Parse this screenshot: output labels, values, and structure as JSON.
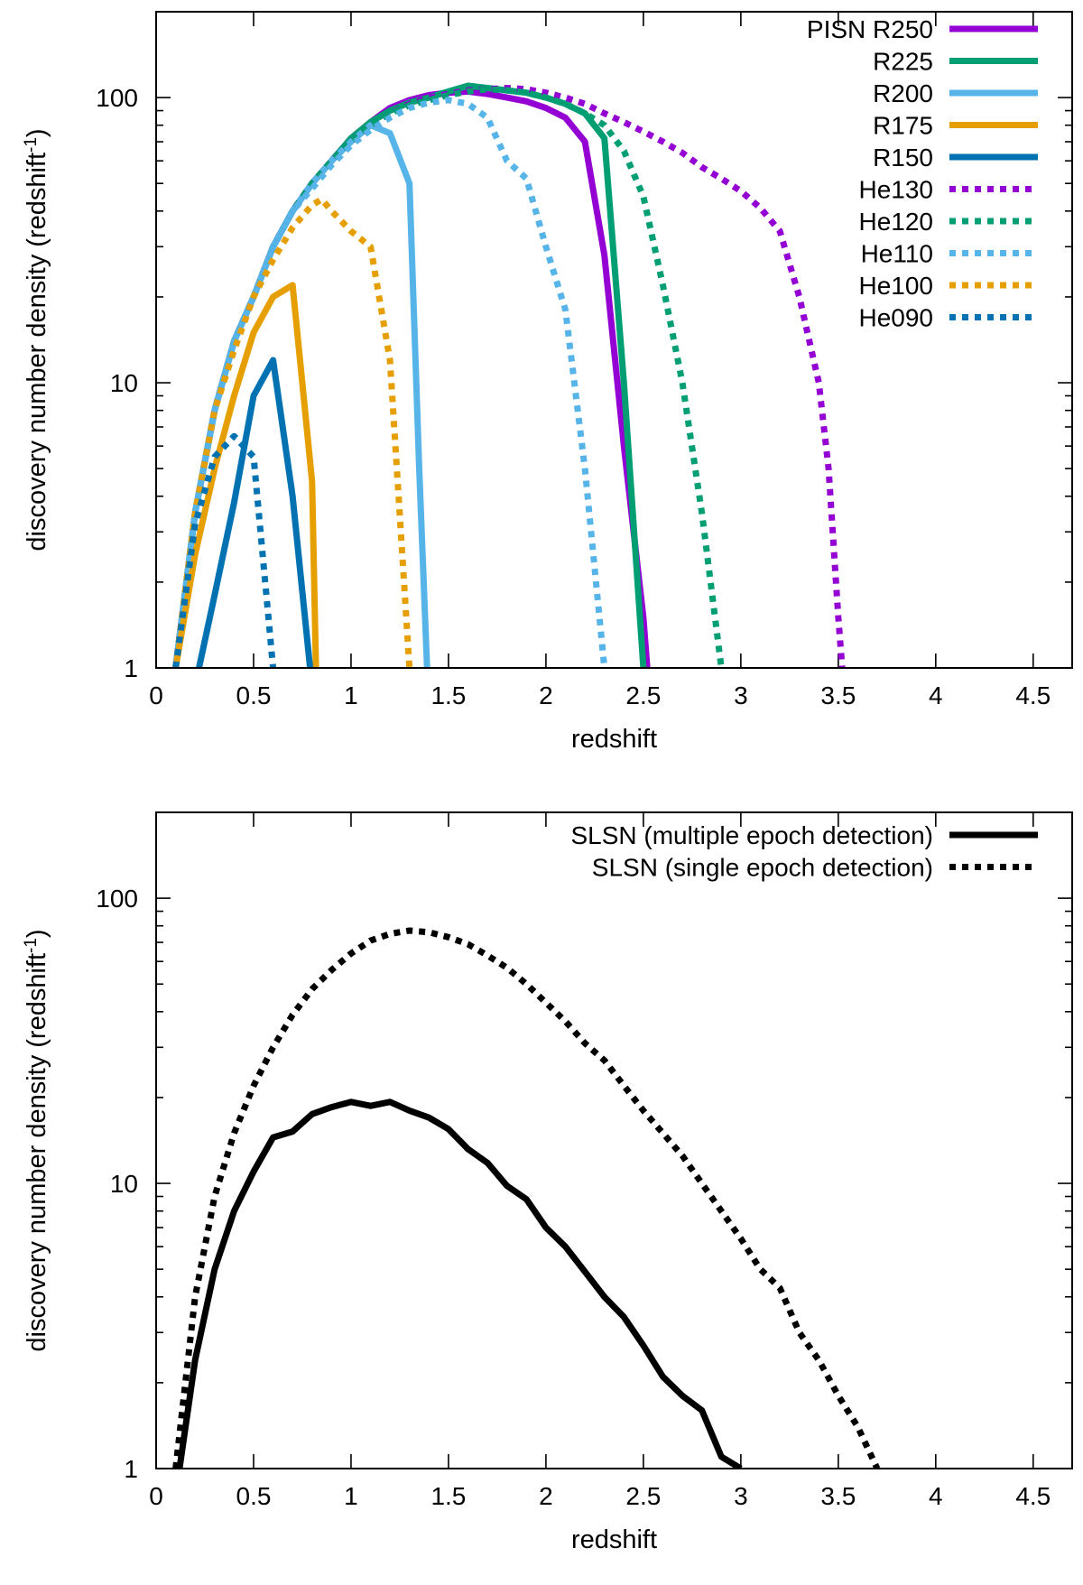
{
  "chart_data": [
    {
      "type": "line",
      "yscale": "log",
      "xlabel": "redshift",
      "ylabel_main": "discovery number density (redshift",
      "ylabel_sup": "-1",
      "ylabel_close": ")",
      "xlim": [
        0,
        4.7
      ],
      "ylim": [
        1,
        200
      ],
      "xticks": [
        0,
        0.5,
        1,
        1.5,
        2,
        2.5,
        3,
        3.5,
        4,
        4.5
      ],
      "xtick_labels": [
        "0",
        "0.5",
        "1",
        "1.5",
        "2",
        "2.5",
        "3",
        "3.5",
        "4",
        "4.5"
      ],
      "yticks": [
        1,
        10,
        100
      ],
      "ytick_labels": [
        "1",
        "10",
        "100"
      ],
      "legend_position": "top-right",
      "series": [
        {
          "name": "PISN R250",
          "color": "#9400D3",
          "dash": "solid",
          "x": [
            0.1,
            0.2,
            0.3,
            0.4,
            0.5,
            0.6,
            0.7,
            0.8,
            0.9,
            1.0,
            1.1,
            1.2,
            1.3,
            1.4,
            1.5,
            1.6,
            1.7,
            1.8,
            1.9,
            2.0,
            2.1,
            2.2,
            2.3,
            2.4,
            2.5,
            2.52
          ],
          "y": [
            1,
            3.5,
            8,
            14,
            20,
            30,
            40,
            50,
            60,
            72,
            82,
            92,
            98,
            102,
            104,
            105,
            103,
            100,
            97,
            92,
            85,
            70,
            28,
            6,
            1.5,
            1
          ]
        },
        {
          "name": "R225",
          "color": "#009E73",
          "dash": "solid",
          "x": [
            0.1,
            0.2,
            0.3,
            0.4,
            0.5,
            0.6,
            0.7,
            0.8,
            0.9,
            1.0,
            1.1,
            1.2,
            1.3,
            1.4,
            1.5,
            1.6,
            1.7,
            1.8,
            1.9,
            2.0,
            2.1,
            2.2,
            2.3,
            2.4,
            2.5
          ],
          "y": [
            1,
            3.5,
            8,
            14,
            20,
            30,
            40,
            50,
            60,
            72,
            82,
            90,
            96,
            100,
            105,
            110,
            108,
            106,
            104,
            100,
            95,
            88,
            72,
            10,
            1
          ]
        },
        {
          "name": "R200",
          "color": "#56B4E9",
          "dash": "solid",
          "x": [
            0.1,
            0.2,
            0.3,
            0.4,
            0.5,
            0.6,
            0.7,
            0.8,
            0.9,
            1.0,
            1.1,
            1.2,
            1.3,
            1.35,
            1.39
          ],
          "y": [
            1,
            3.5,
            8,
            14,
            20,
            30,
            40,
            50,
            60,
            70,
            80,
            75,
            50,
            5,
            1
          ]
        },
        {
          "name": "R175",
          "color": "#E69F00",
          "dash": "solid",
          "x": [
            0.1,
            0.2,
            0.3,
            0.4,
            0.5,
            0.6,
            0.7,
            0.8,
            0.82
          ],
          "y": [
            1,
            2.5,
            5,
            9,
            15,
            20,
            22,
            4.5,
            1
          ]
        },
        {
          "name": "R150",
          "color": "#0072B2",
          "dash": "solid",
          "x": [
            0.22,
            0.3,
            0.4,
            0.5,
            0.6,
            0.7,
            0.79
          ],
          "y": [
            1,
            1.8,
            3.8,
            9,
            12,
            4,
            1
          ]
        },
        {
          "name": "He130",
          "color": "#9400D3",
          "dash": "dotted",
          "x": [
            0.1,
            0.2,
            0.3,
            0.4,
            0.5,
            0.6,
            0.7,
            0.8,
            0.9,
            1.0,
            1.1,
            1.2,
            1.3,
            1.4,
            1.5,
            1.6,
            1.7,
            1.8,
            1.9,
            2.0,
            2.1,
            2.2,
            2.3,
            2.4,
            2.5,
            2.6,
            2.7,
            2.8,
            2.9,
            3.0,
            3.1,
            3.2,
            3.3,
            3.4,
            3.45,
            3.5,
            3.52
          ],
          "y": [
            1,
            3.5,
            8,
            14,
            20,
            30,
            40,
            50,
            60,
            70,
            80,
            88,
            95,
            100,
            103,
            106,
            107,
            108,
            107,
            104,
            100,
            95,
            88,
            82,
            76,
            70,
            64,
            57,
            52,
            47,
            41,
            34,
            20,
            10,
            5,
            1.5,
            1
          ]
        },
        {
          "name": "He120",
          "color": "#009E73",
          "dash": "dotted",
          "x": [
            0.1,
            0.2,
            0.3,
            0.4,
            0.5,
            0.6,
            0.7,
            0.8,
            0.9,
            1.0,
            1.1,
            1.2,
            1.3,
            1.4,
            1.5,
            1.6,
            1.7,
            1.8,
            1.9,
            2.0,
            2.1,
            2.2,
            2.3,
            2.4,
            2.5,
            2.6,
            2.7,
            2.8,
            2.9
          ],
          "y": [
            1,
            3.5,
            8,
            14,
            20,
            30,
            40,
            50,
            60,
            70,
            80,
            88,
            94,
            98,
            102,
            105,
            107,
            106,
            104,
            100,
            95,
            88,
            80,
            65,
            45,
            22,
            10,
            3.5,
            1
          ]
        },
        {
          "name": "He110",
          "color": "#56B4E9",
          "dash": "dotted",
          "x": [
            0.1,
            0.2,
            0.3,
            0.4,
            0.5,
            0.6,
            0.7,
            0.8,
            0.9,
            1.0,
            1.1,
            1.2,
            1.3,
            1.4,
            1.5,
            1.6,
            1.7,
            1.8,
            1.9,
            2.0,
            2.1,
            2.2,
            2.3
          ],
          "y": [
            1,
            3.5,
            8,
            14,
            20,
            30,
            40,
            48,
            58,
            68,
            77,
            85,
            92,
            96,
            98,
            95,
            85,
            60,
            52,
            30,
            18,
            5,
            1
          ]
        },
        {
          "name": "He100",
          "color": "#E69F00",
          "dash": "dotted",
          "x": [
            0.1,
            0.2,
            0.3,
            0.4,
            0.5,
            0.6,
            0.7,
            0.8,
            0.85,
            0.9,
            1.0,
            1.1,
            1.2,
            1.3
          ],
          "y": [
            1,
            3.5,
            8,
            13,
            20,
            27,
            35,
            42,
            44,
            40,
            34,
            30,
            12,
            1
          ]
        },
        {
          "name": "He090",
          "color": "#0072B2",
          "dash": "dotted",
          "x": [
            0.1,
            0.2,
            0.3,
            0.4,
            0.5,
            0.6
          ],
          "y": [
            1,
            3.2,
            5.5,
            6.5,
            5.5,
            1
          ]
        }
      ]
    },
    {
      "type": "line",
      "yscale": "log",
      "xlabel": "redshift",
      "ylabel_main": "discovery number density (redshift",
      "ylabel_sup": "-1",
      "ylabel_close": ")",
      "xlim": [
        0,
        4.7
      ],
      "ylim": [
        1,
        200
      ],
      "xticks": [
        0,
        0.5,
        1,
        1.5,
        2,
        2.5,
        3,
        3.5,
        4,
        4.5
      ],
      "xtick_labels": [
        "0",
        "0.5",
        "1",
        "1.5",
        "2",
        "2.5",
        "3",
        "3.5",
        "4",
        "4.5"
      ],
      "yticks": [
        1,
        10,
        100
      ],
      "ytick_labels": [
        "1",
        "10",
        "100"
      ],
      "legend_position": "top-right",
      "series": [
        {
          "name": "SLSN (multiple epoch detection)",
          "color": "#000000",
          "dash": "solid",
          "x": [
            0.12,
            0.2,
            0.3,
            0.4,
            0.5,
            0.6,
            0.7,
            0.8,
            0.9,
            1.0,
            1.1,
            1.2,
            1.3,
            1.4,
            1.5,
            1.6,
            1.7,
            1.8,
            1.9,
            2.0,
            2.1,
            2.2,
            2.3,
            2.4,
            2.5,
            2.6,
            2.7,
            2.8,
            2.9,
            3.0
          ],
          "y": [
            1,
            2.4,
            5,
            8,
            11,
            14.5,
            15.2,
            17.5,
            18.5,
            19.3,
            18.7,
            19.3,
            18,
            17,
            15.5,
            13.2,
            11.8,
            9.8,
            8.8,
            7,
            6,
            4.9,
            4,
            3.4,
            2.7,
            2.1,
            1.8,
            1.6,
            1.1,
            1
          ]
        },
        {
          "name": "SLSN (single epoch detection)",
          "color": "#000000",
          "dash": "dotted",
          "x": [
            0.1,
            0.2,
            0.3,
            0.4,
            0.5,
            0.6,
            0.7,
            0.8,
            0.9,
            1.0,
            1.1,
            1.2,
            1.3,
            1.4,
            1.5,
            1.6,
            1.7,
            1.8,
            1.9,
            2.0,
            2.1,
            2.2,
            2.3,
            2.4,
            2.5,
            2.6,
            2.7,
            2.8,
            2.9,
            3.0,
            3.1,
            3.2,
            3.3,
            3.4,
            3.5,
            3.6,
            3.7
          ],
          "y": [
            1,
            4,
            9,
            15,
            22,
            30,
            39,
            48,
            56,
            64,
            71,
            75,
            77,
            76,
            73,
            69,
            63,
            57,
            50,
            43,
            37,
            31,
            27,
            22,
            18,
            15,
            12.5,
            10,
            8,
            6.4,
            5,
            4.3,
            3,
            2.4,
            1.8,
            1.4,
            1
          ]
        }
      ]
    }
  ]
}
